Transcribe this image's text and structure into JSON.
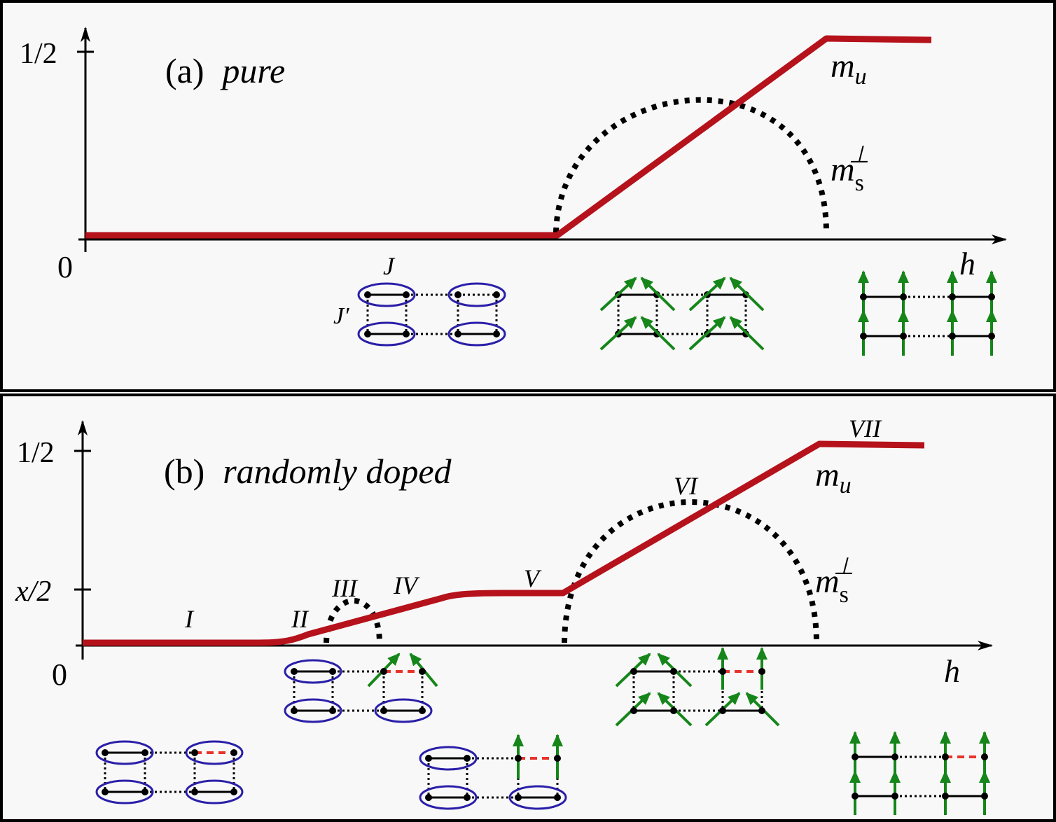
{
  "colors": {
    "magnetization": "#b5121b",
    "staggered": "#000000",
    "dimer": "#2a1fa8",
    "spin_arrow": "#16861a",
    "doped_bond": "#e8332b",
    "panel_bg": "#f8f8f8"
  },
  "panel_a": {
    "title_paren": "(a)",
    "title_word": "pure",
    "y_tick": "1/2",
    "origin": "0",
    "x_axis": "h",
    "mu_label": "m",
    "mu_sub": "u",
    "ms_label": "m",
    "ms_sub": "s",
    "ms_sup": "⊥",
    "J_label": "J",
    "Jp_label": "J′",
    "chart_data": {
      "type": "line",
      "xlabel": "h",
      "ylim": [
        0,
        0.5
      ],
      "series": [
        {
          "points": [
            [
              0,
              0
            ],
            [
              0.51,
              0
            ],
            [
              0.8,
              0.5
            ],
            [
              0.92,
              0.5
            ]
          ]
        },
        {
          "points": [
            [
              0.51,
              0
            ],
            [
              0.65,
              0.42
            ],
            [
              0.8,
              0
            ]
          ]
        }
      ]
    }
  },
  "panel_b": {
    "title_paren": "(b)",
    "title_word": "randomly doped",
    "y_tick_top": "1/2",
    "y_tick_mid": "x/2",
    "origin": "0",
    "x_axis": "h",
    "mu_label": "m",
    "mu_sub": "u",
    "ms_label": "m",
    "ms_sub": "s",
    "ms_sup": "⊥",
    "regions": [
      "I",
      "II",
      "III",
      "IV",
      "V",
      "VI",
      "VII"
    ],
    "chart_data": {
      "type": "line",
      "xlabel": "h",
      "ylim": [
        0,
        0.5
      ],
      "series": [
        {
          "points": [
            [
              0,
              0
            ],
            [
              0.2,
              0
            ],
            [
              0.24,
              0.01
            ],
            [
              0.4,
              0.1
            ],
            [
              0.53,
              0.1
            ],
            [
              0.82,
              0.5
            ],
            [
              0.93,
              0.5
            ]
          ]
        },
        {
          "points": [
            [
              0.27,
              0
            ],
            [
              0.3,
              0.08
            ],
            [
              0.33,
              0
            ]
          ]
        },
        {
          "points": [
            [
              0.53,
              0
            ],
            [
              0.67,
              0.37
            ],
            [
              0.82,
              0
            ]
          ]
        }
      ]
    }
  }
}
